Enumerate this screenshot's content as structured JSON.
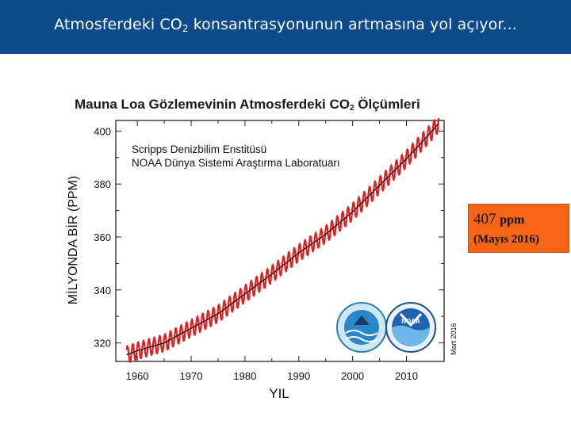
{
  "header": {
    "title_pre": "Atmosferdeki CO",
    "title_sub": "2",
    "title_post": " konsantrasyonunun artmasına yol açıyor..."
  },
  "callout": {
    "value": "407",
    "unit": "ppm",
    "date": "(Mayıs 2016)",
    "color": "#f56515"
  },
  "logos": [
    "scripps-seal-icon",
    "noaa-logo-icon"
  ],
  "chart_data": {
    "type": "line",
    "title_pre": "Mauna Loa Gözlemevinin Atmosferdeki CO",
    "title_sub": "2",
    "title_post": " Ölçümleri",
    "annotation_lines": [
      "Scripps Denizbilim Enstitüsü",
      "NOAA Dünya Sistemi Araştırma Laboratuarı"
    ],
    "date_note": "Mart 2016",
    "xlabel": "YIL",
    "ylabel": "MİLYONDA BİR (PPM)",
    "xlim": [
      1956,
      2017
    ],
    "ylim": [
      313,
      404
    ],
    "xticks": [
      1960,
      1970,
      1980,
      1990,
      2000,
      2010
    ],
    "yticks": [
      320,
      340,
      360,
      380,
      400
    ],
    "grid": false,
    "series": [
      {
        "role": "monthly",
        "color": "#e02020",
        "seasonal_amplitude": 3.2,
        "trend_x": [
          1958,
          1960,
          1965,
          1970,
          1975,
          1980,
          1985,
          1990,
          1995,
          2000,
          2005,
          2010,
          2015,
          2016
        ],
        "trend_y": [
          315.5,
          317,
          320,
          325.5,
          331,
          338.5,
          346,
          354,
          361,
          369.5,
          379.5,
          389.5,
          400.5,
          403
        ]
      },
      {
        "role": "annual-mean",
        "color": "#111111",
        "x": [
          1958,
          1960,
          1965,
          1970,
          1975,
          1980,
          1985,
          1990,
          1995,
          2000,
          2005,
          2010,
          2015,
          2016
        ],
        "y": [
          315.5,
          317,
          320,
          325.5,
          331,
          338.5,
          346,
          354,
          361,
          369.5,
          379.5,
          389.5,
          400.5,
          403
        ]
      }
    ]
  }
}
